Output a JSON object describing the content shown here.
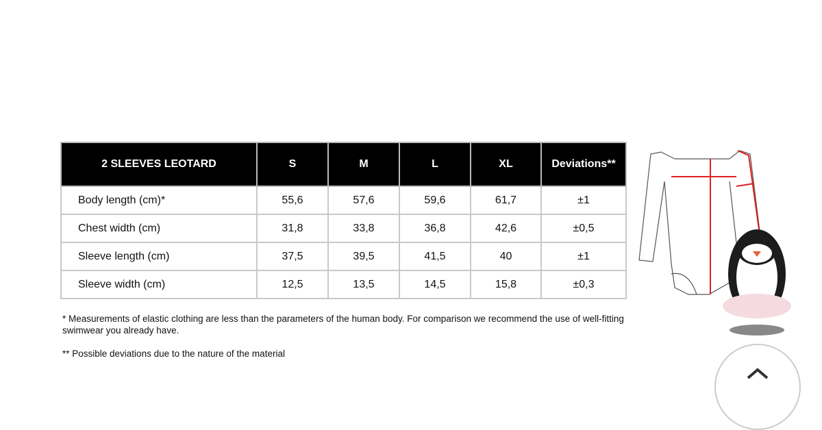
{
  "table": {
    "headers": [
      "2 SLEEVES LEOTARD",
      "S",
      "M",
      "L",
      "XL",
      "Deviations**"
    ],
    "rows": [
      [
        "Body length (cm)*",
        "55,6",
        "57,6",
        "59,6",
        "61,7",
        "±1"
      ],
      [
        "Chest width (cm)",
        "31,8",
        "33,8",
        "36,8",
        "42,6",
        "±0,5"
      ],
      [
        "Sleeve length (cm)",
        "37,5",
        "39,5",
        "41,5",
        "40",
        "±1"
      ],
      [
        "Sleeve width (cm)",
        "12,5",
        "13,5",
        "14,5",
        "15,8",
        "±0,3"
      ]
    ]
  },
  "notes": [
    "* Measurements of elastic clothing are less than the parameters of the human body. For comparison we recommend the use of well-fitting swimwear you already have.",
    "** Possible deviations due to the nature of the material"
  ],
  "colors": {
    "header_bg": "#000000",
    "measure_line": "#e02020"
  },
  "icons": {
    "scroll_top": "chevron-up-icon"
  }
}
